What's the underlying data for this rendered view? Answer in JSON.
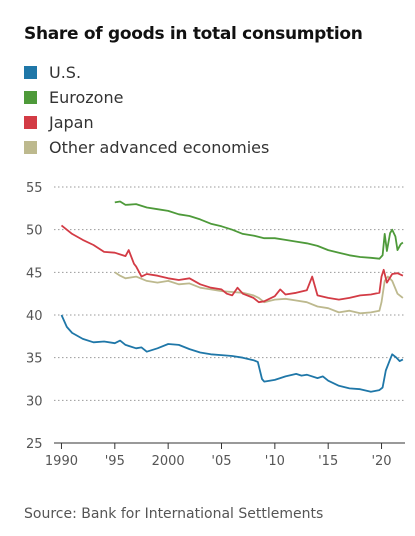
{
  "chart_data": {
    "type": "line",
    "title": "Share of goods in total consumption",
    "xlabel": "",
    "ylabel": "",
    "xlim": [
      1989.3,
      2022.2
    ],
    "ylim": [
      25,
      55
    ],
    "yticks": [
      25,
      30,
      35,
      40,
      45,
      50,
      55
    ],
    "xticks": [
      {
        "value": 1990,
        "label": "1990"
      },
      {
        "value": 1995,
        "label": "'95"
      },
      {
        "value": 2000,
        "label": "2000"
      },
      {
        "value": 2005,
        "label": "'05"
      },
      {
        "value": 2010,
        "label": "'10"
      },
      {
        "value": 2015,
        "label": "'15"
      },
      {
        "value": 2020,
        "label": "'20"
      }
    ],
    "grid": "horizontal dotted",
    "legend_position": "top-left",
    "series": [
      {
        "name": "U.S.",
        "color": "#1f77a8",
        "points": [
          [
            1990,
            40
          ],
          [
            1990.5,
            38.6
          ],
          [
            1991,
            37.9
          ],
          [
            1992,
            37.2
          ],
          [
            1993,
            36.8
          ],
          [
            1994,
            36.9
          ],
          [
            1995,
            36.7
          ],
          [
            1995.5,
            37.0
          ],
          [
            1996,
            36.5
          ],
          [
            1997,
            36.1
          ],
          [
            1997.5,
            36.2
          ],
          [
            1998,
            35.7
          ],
          [
            1999,
            36.1
          ],
          [
            2000,
            36.6
          ],
          [
            2001,
            36.5
          ],
          [
            2002,
            36.0
          ],
          [
            2003,
            35.6
          ],
          [
            2004,
            35.4
          ],
          [
            2005,
            35.3
          ],
          [
            2006,
            35.2
          ],
          [
            2007,
            35.0
          ],
          [
            2008,
            34.7
          ],
          [
            2008.4,
            34.5
          ],
          [
            2008.8,
            32.5
          ],
          [
            2009,
            32.2
          ],
          [
            2010,
            32.4
          ],
          [
            2010.5,
            32.6
          ],
          [
            2011,
            32.8
          ],
          [
            2012,
            33.1
          ],
          [
            2012.5,
            32.9
          ],
          [
            2013,
            33.0
          ],
          [
            2014,
            32.6
          ],
          [
            2014.5,
            32.8
          ],
          [
            2015,
            32.3
          ],
          [
            2016,
            31.7
          ],
          [
            2017,
            31.4
          ],
          [
            2018,
            31.3
          ],
          [
            2019,
            31.0
          ],
          [
            2019.8,
            31.2
          ],
          [
            2020.1,
            31.5
          ],
          [
            2020.4,
            33.5
          ],
          [
            2020.8,
            34.8
          ],
          [
            2021,
            35.4
          ],
          [
            2021.4,
            35.0
          ],
          [
            2021.7,
            34.6
          ],
          [
            2022,
            34.8
          ]
        ]
      },
      {
        "name": "Eurozone",
        "color": "#4e9a3a",
        "points": [
          [
            1995,
            53.2
          ],
          [
            1995.5,
            53.3
          ],
          [
            1996,
            52.9
          ],
          [
            1997,
            53.0
          ],
          [
            1998,
            52.6
          ],
          [
            1999,
            52.4
          ],
          [
            2000,
            52.2
          ],
          [
            2001,
            51.8
          ],
          [
            2002,
            51.6
          ],
          [
            2003,
            51.2
          ],
          [
            2004,
            50.7
          ],
          [
            2005,
            50.4
          ],
          [
            2006,
            50.0
          ],
          [
            2007,
            49.5
          ],
          [
            2008,
            49.3
          ],
          [
            2009,
            49.0
          ],
          [
            2010,
            49.0
          ],
          [
            2011,
            48.8
          ],
          [
            2012,
            48.6
          ],
          [
            2013,
            48.4
          ],
          [
            2014,
            48.1
          ],
          [
            2015,
            47.6
          ],
          [
            2016,
            47.3
          ],
          [
            2017,
            47.0
          ],
          [
            2018,
            46.8
          ],
          [
            2019,
            46.7
          ],
          [
            2019.8,
            46.6
          ],
          [
            2020.1,
            47.0
          ],
          [
            2020.3,
            49.5
          ],
          [
            2020.5,
            47.5
          ],
          [
            2020.8,
            49.6
          ],
          [
            2021,
            50.0
          ],
          [
            2021.3,
            49.2
          ],
          [
            2021.5,
            47.6
          ],
          [
            2021.8,
            48.3
          ],
          [
            2022,
            48.5
          ]
        ]
      },
      {
        "name": "Japan",
        "color": "#d33b45",
        "points": [
          [
            1990,
            50.5
          ],
          [
            1991,
            49.5
          ],
          [
            1992,
            48.8
          ],
          [
            1993,
            48.2
          ],
          [
            1994,
            47.4
          ],
          [
            1995,
            47.3
          ],
          [
            1996,
            46.9
          ],
          [
            1996.3,
            47.6
          ],
          [
            1996.8,
            46.0
          ],
          [
            1997,
            45.7
          ],
          [
            1997.5,
            44.5
          ],
          [
            1998,
            44.8
          ],
          [
            1999,
            44.6
          ],
          [
            2000,
            44.3
          ],
          [
            2001,
            44.1
          ],
          [
            2002,
            44.3
          ],
          [
            2003,
            43.6
          ],
          [
            2004,
            43.2
          ],
          [
            2005,
            43.0
          ],
          [
            2005.5,
            42.5
          ],
          [
            2006,
            42.3
          ],
          [
            2006.5,
            43.2
          ],
          [
            2007,
            42.5
          ],
          [
            2008,
            42.0
          ],
          [
            2008.5,
            41.5
          ],
          [
            2009,
            41.6
          ],
          [
            2010,
            42.2
          ],
          [
            2010.5,
            43.0
          ],
          [
            2011,
            42.4
          ],
          [
            2012,
            42.6
          ],
          [
            2013,
            42.9
          ],
          [
            2013.5,
            44.5
          ],
          [
            2014,
            42.3
          ],
          [
            2015,
            42.0
          ],
          [
            2016,
            41.8
          ],
          [
            2017,
            42.0
          ],
          [
            2018,
            42.3
          ],
          [
            2019,
            42.4
          ],
          [
            2019.8,
            42.6
          ],
          [
            2020,
            44.5
          ],
          [
            2020.2,
            45.3
          ],
          [
            2020.5,
            43.8
          ],
          [
            2021,
            44.8
          ],
          [
            2021.5,
            44.9
          ],
          [
            2022,
            44.6
          ]
        ]
      },
      {
        "name": "Other advanced economies",
        "color": "#bdb98e",
        "points": [
          [
            1995,
            45.0
          ],
          [
            1995.5,
            44.6
          ],
          [
            1996,
            44.3
          ],
          [
            1997,
            44.5
          ],
          [
            1998,
            44.0
          ],
          [
            1999,
            43.8
          ],
          [
            2000,
            44.0
          ],
          [
            2001,
            43.6
          ],
          [
            2002,
            43.7
          ],
          [
            2003,
            43.2
          ],
          [
            2004,
            43.0
          ],
          [
            2005,
            42.8
          ],
          [
            2006,
            42.7
          ],
          [
            2007,
            42.6
          ],
          [
            2008,
            42.3
          ],
          [
            2008.5,
            42.0
          ],
          [
            2009,
            41.5
          ],
          [
            2010,
            41.8
          ],
          [
            2011,
            41.9
          ],
          [
            2012,
            41.7
          ],
          [
            2013,
            41.5
          ],
          [
            2014,
            41.0
          ],
          [
            2015,
            40.8
          ],
          [
            2016,
            40.3
          ],
          [
            2017,
            40.5
          ],
          [
            2018,
            40.2
          ],
          [
            2019,
            40.3
          ],
          [
            2019.8,
            40.5
          ],
          [
            2020,
            41.5
          ],
          [
            2020.3,
            44.0
          ],
          [
            2020.6,
            44.5
          ],
          [
            2021,
            44.0
          ],
          [
            2021.5,
            42.5
          ],
          [
            2022,
            42.0
          ]
        ]
      }
    ],
    "source": "Source: Bank for International Settlements"
  }
}
